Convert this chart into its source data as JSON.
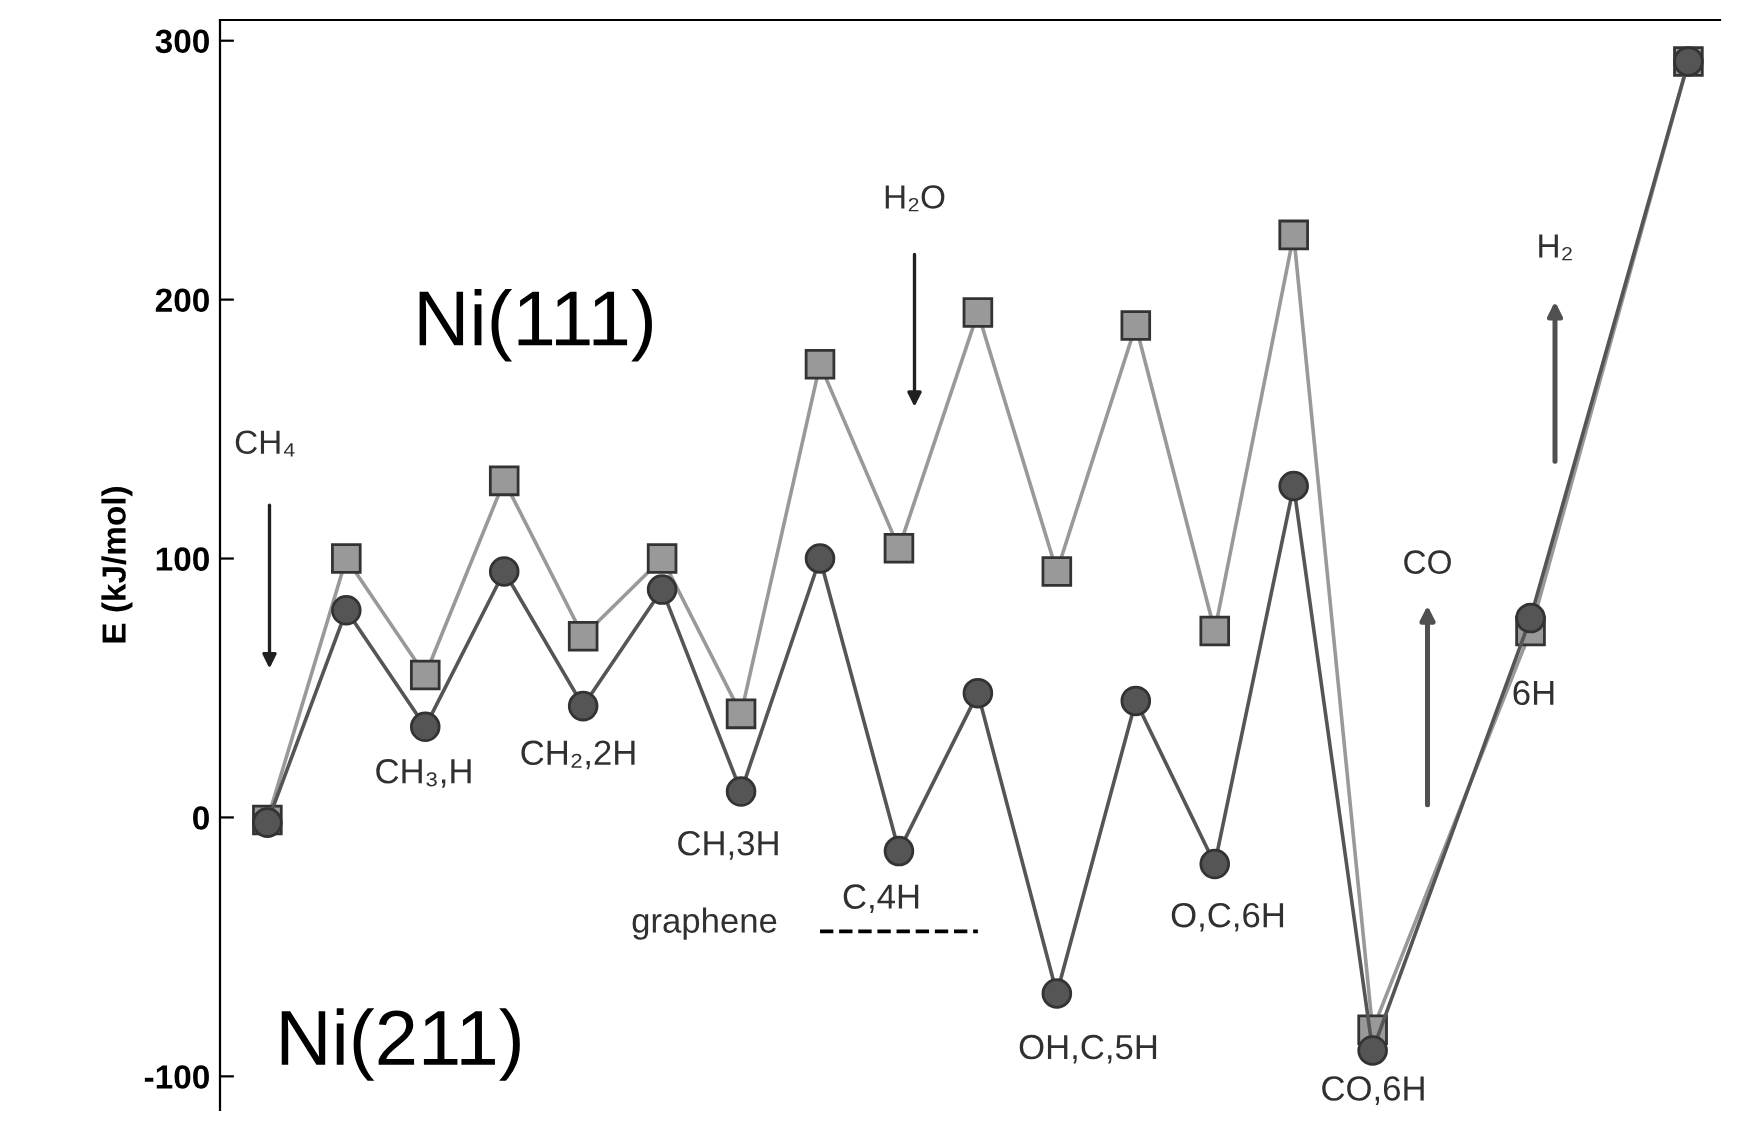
{
  "chart_data": {
    "type": "line",
    "ylabel": "E (kJ/mol)",
    "tick_labels": "y",
    "ylim": [
      -113,
      308
    ],
    "yticks": [
      -100,
      0,
      100,
      200,
      300
    ],
    "grid": false,
    "legend": false,
    "categories": [
      null,
      null,
      null,
      null,
      null,
      null,
      null,
      null,
      null,
      null,
      null,
      null,
      null,
      null,
      null,
      null,
      null,
      null,
      null
    ],
    "series": [
      {
        "name": "Ni(111)",
        "color": "#999999",
        "marker": "square",
        "line_style": "solid",
        "values": [
          -1,
          100,
          55,
          130,
          70,
          100,
          40,
          175,
          104,
          195,
          95,
          190,
          72,
          225,
          -82,
          null,
          72,
          null,
          292
        ]
      },
      {
        "name": "Ni(211)",
        "color": "#555555",
        "marker": "circle",
        "line_style": "solid",
        "values": [
          -2,
          80,
          35,
          95,
          43,
          88,
          10,
          100,
          -13,
          48,
          -68,
          45,
          -18,
          128,
          -90,
          null,
          77,
          null,
          292
        ]
      },
      {
        "color": "#000000",
        "marker": "none",
        "line_style": "dashed",
        "values": [
          null,
          null,
          null,
          null,
          null,
          null,
          null,
          -44,
          -44,
          -44,
          null,
          null,
          null,
          null,
          null,
          null,
          null,
          null,
          null
        ]
      }
    ],
    "annotations": [
      "CH₄",
      "H₂O",
      "CO",
      "H₂",
      "CH₃,H",
      "CH₂,2H",
      "CH,3H",
      "C,4H",
      "graphene",
      "OH,C,5H",
      "O,C,6H",
      "CO,6H",
      "6H"
    ]
  }
}
